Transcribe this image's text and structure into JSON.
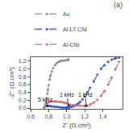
{
  "chart_data": {
    "type": "line",
    "title": "(a)",
    "x_label": "Z' (Ω.cm²)",
    "y_label": "-Z'' (Ω.cm²)",
    "xlim": [
      0.6,
      1.62
    ],
    "ylim": [
      -0.02,
      1.3
    ],
    "xticks": [
      {
        "value": 0.6,
        "label": "0,6"
      },
      {
        "value": 0.8,
        "label": "0,8"
      },
      {
        "value": 1.0,
        "label": "1,0"
      },
      {
        "value": 1.2,
        "label": "1,2"
      },
      {
        "value": 1.4,
        "label": "1,4"
      }
    ],
    "yticks": [
      {
        "value": 0.0,
        "label": "0,0"
      },
      {
        "value": 0.2,
        "label": "0,2"
      },
      {
        "value": 0.4,
        "label": "0,4"
      },
      {
        "value": 0.6,
        "label": "0,6"
      },
      {
        "value": 0.8,
        "label": "0,8"
      },
      {
        "value": 1.0,
        "label": "1,0"
      },
      {
        "value": 1.2,
        "label": "1,2"
      }
    ],
    "grid": false,
    "legend": "upper left",
    "line_style": "dashed",
    "marker": "dot",
    "series": [
      {
        "name": "Au",
        "color": "#888888",
        "x": [
          0.745,
          0.75,
          0.755,
          0.758,
          0.762,
          0.767,
          0.772,
          0.778,
          0.785,
          0.792,
          0.8,
          0.81,
          0.82,
          0.835,
          0.85,
          0.87,
          0.89,
          0.91,
          0.93,
          0.95,
          0.97,
          0.985,
          1.0,
          1.01,
          1.015,
          1.018,
          1.02
        ],
        "values": [
          0.0,
          0.01,
          0.02,
          0.04,
          0.07,
          0.12,
          0.18,
          0.26,
          0.36,
          0.47,
          0.59,
          0.72,
          0.83,
          0.94,
          1.02,
          1.1,
          1.15,
          1.18,
          1.2,
          1.21,
          1.22,
          1.22,
          1.23,
          1.23,
          1.23,
          1.24,
          1.25
        ]
      },
      {
        "name": "Al-LT-CNi",
        "color": "#3355cc",
        "x": [
          0.78,
          0.79,
          0.8,
          0.815,
          0.83,
          0.85,
          0.87,
          0.89,
          0.91,
          0.93,
          0.95,
          0.97,
          0.99,
          1.0,
          1.01,
          1.02,
          1.035,
          1.05,
          1.07,
          1.09,
          1.11,
          1.13,
          1.15,
          1.175,
          1.2,
          1.23,
          1.26,
          1.3,
          1.34,
          1.38,
          1.42,
          1.46,
          1.5,
          1.54,
          1.58
        ],
        "values": [
          0.05,
          0.05,
          0.05,
          0.05,
          0.04,
          0.04,
          0.03,
          0.03,
          0.02,
          0.02,
          0.01,
          0.01,
          0.01,
          0.01,
          0.01,
          0.01,
          0.02,
          0.03,
          0.04,
          0.06,
          0.09,
          0.12,
          0.16,
          0.22,
          0.29,
          0.4,
          0.52,
          0.68,
          0.85,
          1.0,
          1.1,
          1.18,
          1.24,
          1.27,
          1.29
        ]
      },
      {
        "name": "Al-CNi",
        "color": "#cc6677",
        "x": [
          0.78,
          0.79,
          0.8,
          0.815,
          0.83,
          0.85,
          0.87,
          0.89,
          0.91,
          0.93,
          0.95,
          0.97,
          0.99,
          1.01,
          1.04,
          1.07,
          1.1,
          1.13,
          1.16,
          1.19,
          1.21,
          1.22,
          1.23,
          1.26,
          1.3,
          1.34,
          1.38,
          1.42,
          1.46,
          1.5,
          1.54,
          1.58
        ],
        "values": [
          0.13,
          0.14,
          0.15,
          0.16,
          0.17,
          0.17,
          0.17,
          0.17,
          0.16,
          0.16,
          0.15,
          0.14,
          0.13,
          0.11,
          0.09,
          0.08,
          0.07,
          0.06,
          0.06,
          0.05,
          0.05,
          0.05,
          0.06,
          0.09,
          0.14,
          0.21,
          0.31,
          0.44,
          0.6,
          0.78,
          0.99,
          1.18
        ]
      }
    ],
    "annotations": [
      {
        "text": "5 kHz",
        "x": 0.795,
        "y": 0.01,
        "text_x": 0.76,
        "text_y": 0.22
      },
      {
        "text": "1 kHz",
        "x": 1.025,
        "y": 0.02,
        "text_x": 1.0,
        "text_y": 0.35
      },
      {
        "text": "1 kHz",
        "x": 1.215,
        "y": 0.02,
        "text_x": 1.21,
        "text_y": 0.35
      }
    ]
  }
}
